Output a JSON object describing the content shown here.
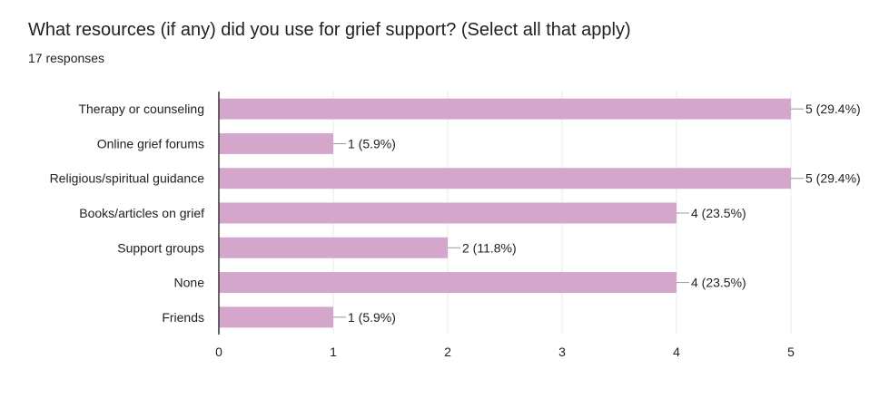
{
  "header": {
    "title": "What resources (if any) did you use for grief support? (Select all that apply)",
    "responses": "17 responses"
  },
  "colors": {
    "bar": "#d5a6cb",
    "grid": "#ebebeb",
    "axis": "#333333",
    "text": "#202124"
  },
  "chart_data": {
    "type": "bar",
    "orientation": "horizontal",
    "categories": [
      "Therapy or counseling",
      "Online grief forums",
      "Religious/spiritual guidance",
      "Books/articles on grief",
      "Support groups",
      "None",
      "Friends"
    ],
    "values": [
      5,
      1,
      5,
      4,
      2,
      4,
      1
    ],
    "data_labels": [
      "5 (29.4%)",
      "1 (5.9%)",
      "5 (29.4%)",
      "4 (23.5%)",
      "2 (11.8%)",
      "4 (23.5%)",
      "1 (5.9%)"
    ],
    "xlim": [
      0,
      5
    ],
    "xticks": [
      0,
      1,
      2,
      3,
      4,
      5
    ],
    "grid": true,
    "title": "What resources (if any) did you use for grief support? (Select all that apply)",
    "xlabel": "",
    "ylabel": ""
  }
}
